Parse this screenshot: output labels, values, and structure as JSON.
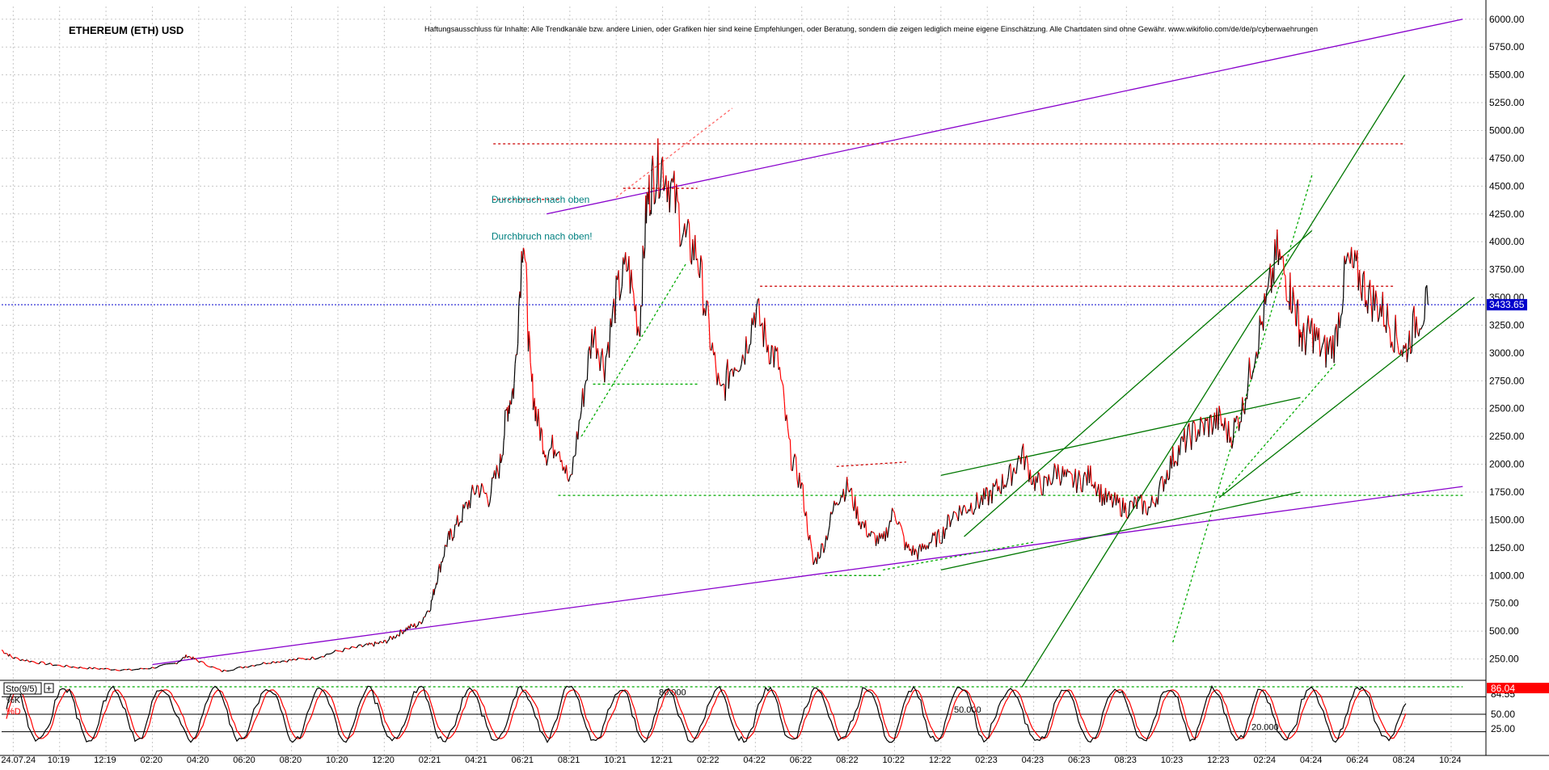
{
  "chart_data": {
    "type": "line",
    "title": "ETHEREUM (ETH) USD",
    "disclaimer": "Haftungsausschluss für Inhalte: Alle Trendkanäle bzw. andere Linien, oder Grafiken hier sind keine Empfehlungen, oder Beratung, sondern die zeigen lediglich meine eigene Einschätzung. Alle Chartdaten sind ohne Gewähr.  www.wikifolio.com/de/de/p/cyberwaehrungen",
    "y_axis": {
      "ylim": [
        0,
        6100
      ],
      "ticks": [
        "6000.00",
        "5750.00",
        "5500.00",
        "5250.00",
        "5000.00",
        "4750.00",
        "4500.00",
        "4250.00",
        "4000.00",
        "3750.00",
        "3500.00",
        "3250.00",
        "3000.00",
        "2750.00",
        "2500.00",
        "2250.00",
        "2000.00",
        "1750.00",
        "1500.00",
        "1250.00",
        "1000.00",
        "750.00",
        "500.00",
        "250.00"
      ],
      "tick_values": [
        6000,
        5750,
        5500,
        5250,
        5000,
        4750,
        4500,
        4250,
        4000,
        3750,
        3500,
        3250,
        3000,
        2750,
        2500,
        2250,
        2000,
        1750,
        1500,
        1250,
        1000,
        750,
        500,
        250
      ]
    },
    "x_axis": {
      "ticks": [
        "24.07.24",
        "10:19",
        "12:19",
        "02:20",
        "04:20",
        "06:20",
        "08:20",
        "10:20",
        "12:20",
        "02:21",
        "04:21",
        "06:21",
        "08:21",
        "10:21",
        "12:21",
        "02:22",
        "04:22",
        "06:22",
        "08:22",
        "10:22",
        "12:22",
        "02:23",
        "04:23",
        "06:23",
        "08:23",
        "10:23",
        "12:23",
        "02:24",
        "04:24",
        "06:24",
        "08:24",
        "10:24"
      ],
      "tick_months": [
        -2,
        0,
        2,
        4,
        6,
        8,
        10,
        12,
        14,
        16,
        18,
        20,
        22,
        24,
        26,
        28,
        30,
        32,
        34,
        36,
        38,
        40,
        42,
        44,
        46,
        48,
        50,
        52,
        54,
        56,
        58,
        60
      ]
    },
    "x_unit_note": "",
    "current_price_label": "3433.65",
    "current_price": 3433.65,
    "price_series": {
      "name": "",
      "x_months": [
        -2.5,
        -2,
        -1,
        0,
        1,
        2,
        3,
        4,
        5,
        5.5,
        6,
        7,
        8,
        9,
        10,
        11,
        12,
        13,
        13.5,
        14,
        14.5,
        15,
        15.5,
        16,
        16.3,
        16.7,
        17,
        17.5,
        18,
        18.5,
        19,
        19.3,
        19.6,
        20,
        20.3,
        20.6,
        21,
        21.5,
        22,
        22.5,
        23,
        23.5,
        24,
        24.5,
        25,
        25.3,
        25.6,
        26,
        26.5,
        27,
        27.5,
        28,
        28.5,
        29,
        29.5,
        30,
        30.5,
        31,
        31.5,
        32,
        32.5,
        33,
        33.5,
        34,
        34.5,
        35,
        35.5,
        36,
        36.5,
        37,
        37.5,
        38,
        38.5,
        39,
        39.5,
        40,
        40.5,
        41,
        41.5,
        42,
        42.5,
        43,
        43.5,
        44,
        44.5,
        45,
        45.5,
        46,
        46.5,
        47,
        47.5,
        48,
        48.5,
        49,
        49.5,
        50,
        50.5,
        51,
        51.5,
        52,
        52.5,
        53,
        53.3,
        53.6,
        54,
        54.5,
        55,
        55.5,
        56,
        56.5,
        57,
        57.5,
        58,
        58.5,
        59
      ],
      "values": [
        330,
        260,
        220,
        190,
        170,
        160,
        150,
        170,
        210,
        280,
        230,
        140,
        180,
        220,
        240,
        260,
        320,
        360,
        380,
        400,
        460,
        530,
        560,
        730,
        1000,
        1300,
        1400,
        1600,
        1800,
        1700,
        2000,
        2500,
        2700,
        4150,
        2800,
        2400,
        2100,
        2200,
        1800,
        2500,
        3200,
        2900,
        3500,
        3800,
        3200,
        4300,
        4600,
        4700,
        4400,
        4000,
        3900,
        3200,
        2600,
        2900,
        3000,
        3400,
        3100,
        2900,
        2100,
        1800,
        1100,
        1300,
        1700,
        1800,
        1500,
        1350,
        1300,
        1600,
        1250,
        1200,
        1300,
        1350,
        1550,
        1600,
        1650,
        1700,
        1800,
        1900,
        2100,
        1850,
        1800,
        1950,
        1850,
        1850,
        1900,
        1700,
        1650,
        1600,
        1650,
        1600,
        1800,
        2050,
        2200,
        2300,
        2350,
        2400,
        2250,
        2500,
        3000,
        3400,
        3900,
        3600,
        3400,
        3100,
        3200,
        3000,
        3100,
        3800,
        3700,
        3500,
        3400,
        3200,
        3000,
        3300,
        3433.65
      ]
    },
    "trend_lines": [
      {
        "color": "#8800cc",
        "points": [
          [
            21,
            4250
          ],
          [
            60.5,
            6000
          ]
        ]
      },
      {
        "color": "#8800cc",
        "points": [
          [
            4,
            200
          ],
          [
            60.5,
            1800
          ]
        ]
      },
      {
        "color": "#cc0000",
        "style": "dashed",
        "points": [
          [
            18.7,
            4880
          ],
          [
            58,
            4880
          ]
        ]
      },
      {
        "color": "#cc0000",
        "style": "dashed",
        "points": [
          [
            18.7,
            4380
          ],
          [
            21.6,
            4380
          ]
        ]
      },
      {
        "color": "#cc0000",
        "style": "dashed",
        "points": [
          [
            24.3,
            4480
          ],
          [
            27.5,
            4480
          ]
        ]
      },
      {
        "color": "#cc0000",
        "style": "dashed",
        "points": [
          [
            30.2,
            3600
          ],
          [
            57.5,
            3600
          ]
        ]
      },
      {
        "color": "#cc0000",
        "style": "dashed",
        "points": [
          [
            33.5,
            1980
          ],
          [
            36.5,
            2020
          ]
        ]
      },
      {
        "color": "#ff6666",
        "style": "dashed",
        "points": [
          [
            24,
            4400
          ],
          [
            29,
            5200
          ]
        ]
      },
      {
        "color": "#00aa00",
        "style": "dashed",
        "points": [
          [
            22.5,
            2250
          ],
          [
            27,
            3800
          ]
        ]
      },
      {
        "color": "#00aa00",
        "style": "dashed",
        "points": [
          [
            23,
            2720
          ],
          [
            27.5,
            2720
          ]
        ]
      },
      {
        "color": "#00aa00",
        "style": "dashed",
        "points": [
          [
            21.5,
            1720
          ],
          [
            60.5,
            1720
          ]
        ]
      },
      {
        "color": "#00aa00",
        "style": "dashed",
        "points": [
          [
            33,
            1000
          ],
          [
            35.5,
            1000
          ]
        ]
      },
      {
        "color": "#00aa00",
        "style": "dashed",
        "points": [
          [
            35.5,
            1050
          ],
          [
            42,
            1300
          ]
        ]
      },
      {
        "color": "#00aa00",
        "style": "dashed",
        "points": [
          [
            0,
            0
          ],
          [
            60.5,
            0
          ]
        ]
      },
      {
        "color": "#00aa00",
        "style": "dashed",
        "points": [
          [
            48,
            400
          ],
          [
            54,
            4600
          ]
        ]
      },
      {
        "color": "#00aa00",
        "style": "dashed",
        "points": [
          [
            50,
            1700
          ],
          [
            55,
            2900
          ]
        ]
      },
      {
        "color": "#007700",
        "points": [
          [
            41.5,
            0
          ],
          [
            58,
            5500
          ]
        ]
      },
      {
        "color": "#007700",
        "points": [
          [
            39,
            1350
          ],
          [
            54,
            4100
          ]
        ]
      },
      {
        "color": "#007700",
        "points": [
          [
            50,
            1700
          ],
          [
            61,
            3500
          ]
        ]
      },
      {
        "color": "#007700",
        "points": [
          [
            38,
            1900
          ],
          [
            53.5,
            2600
          ]
        ]
      },
      {
        "color": "#007700",
        "points": [
          [
            38,
            1050
          ],
          [
            53.5,
            1750
          ]
        ]
      }
    ],
    "annotations": [
      {
        "text": "Durchbruch nach oben",
        "x": 23.5,
        "y": 4380
      },
      {
        "text": "Durchbruch nach oben!",
        "x": 23.5,
        "y": 4050
      }
    ],
    "oscillator": {
      "label": "Sto(9/5)",
      "k_label": "%K",
      "d_label": "%D",
      "ylim": [
        0,
        100
      ],
      "ticks": [
        "84.55",
        "50.00",
        "25.00"
      ],
      "tick_values": [
        84.55,
        50,
        25
      ],
      "value_labels": [
        "86.04",
        "84.55"
      ],
      "reference_lines": [
        {
          "label": "80.000",
          "value": 80
        },
        {
          "label": "50.000",
          "value": 50
        },
        {
          "label": "20.000",
          "value": 20
        }
      ],
      "k_color": "#000000",
      "d_color": "#ff0000"
    },
    "grid": true
  }
}
